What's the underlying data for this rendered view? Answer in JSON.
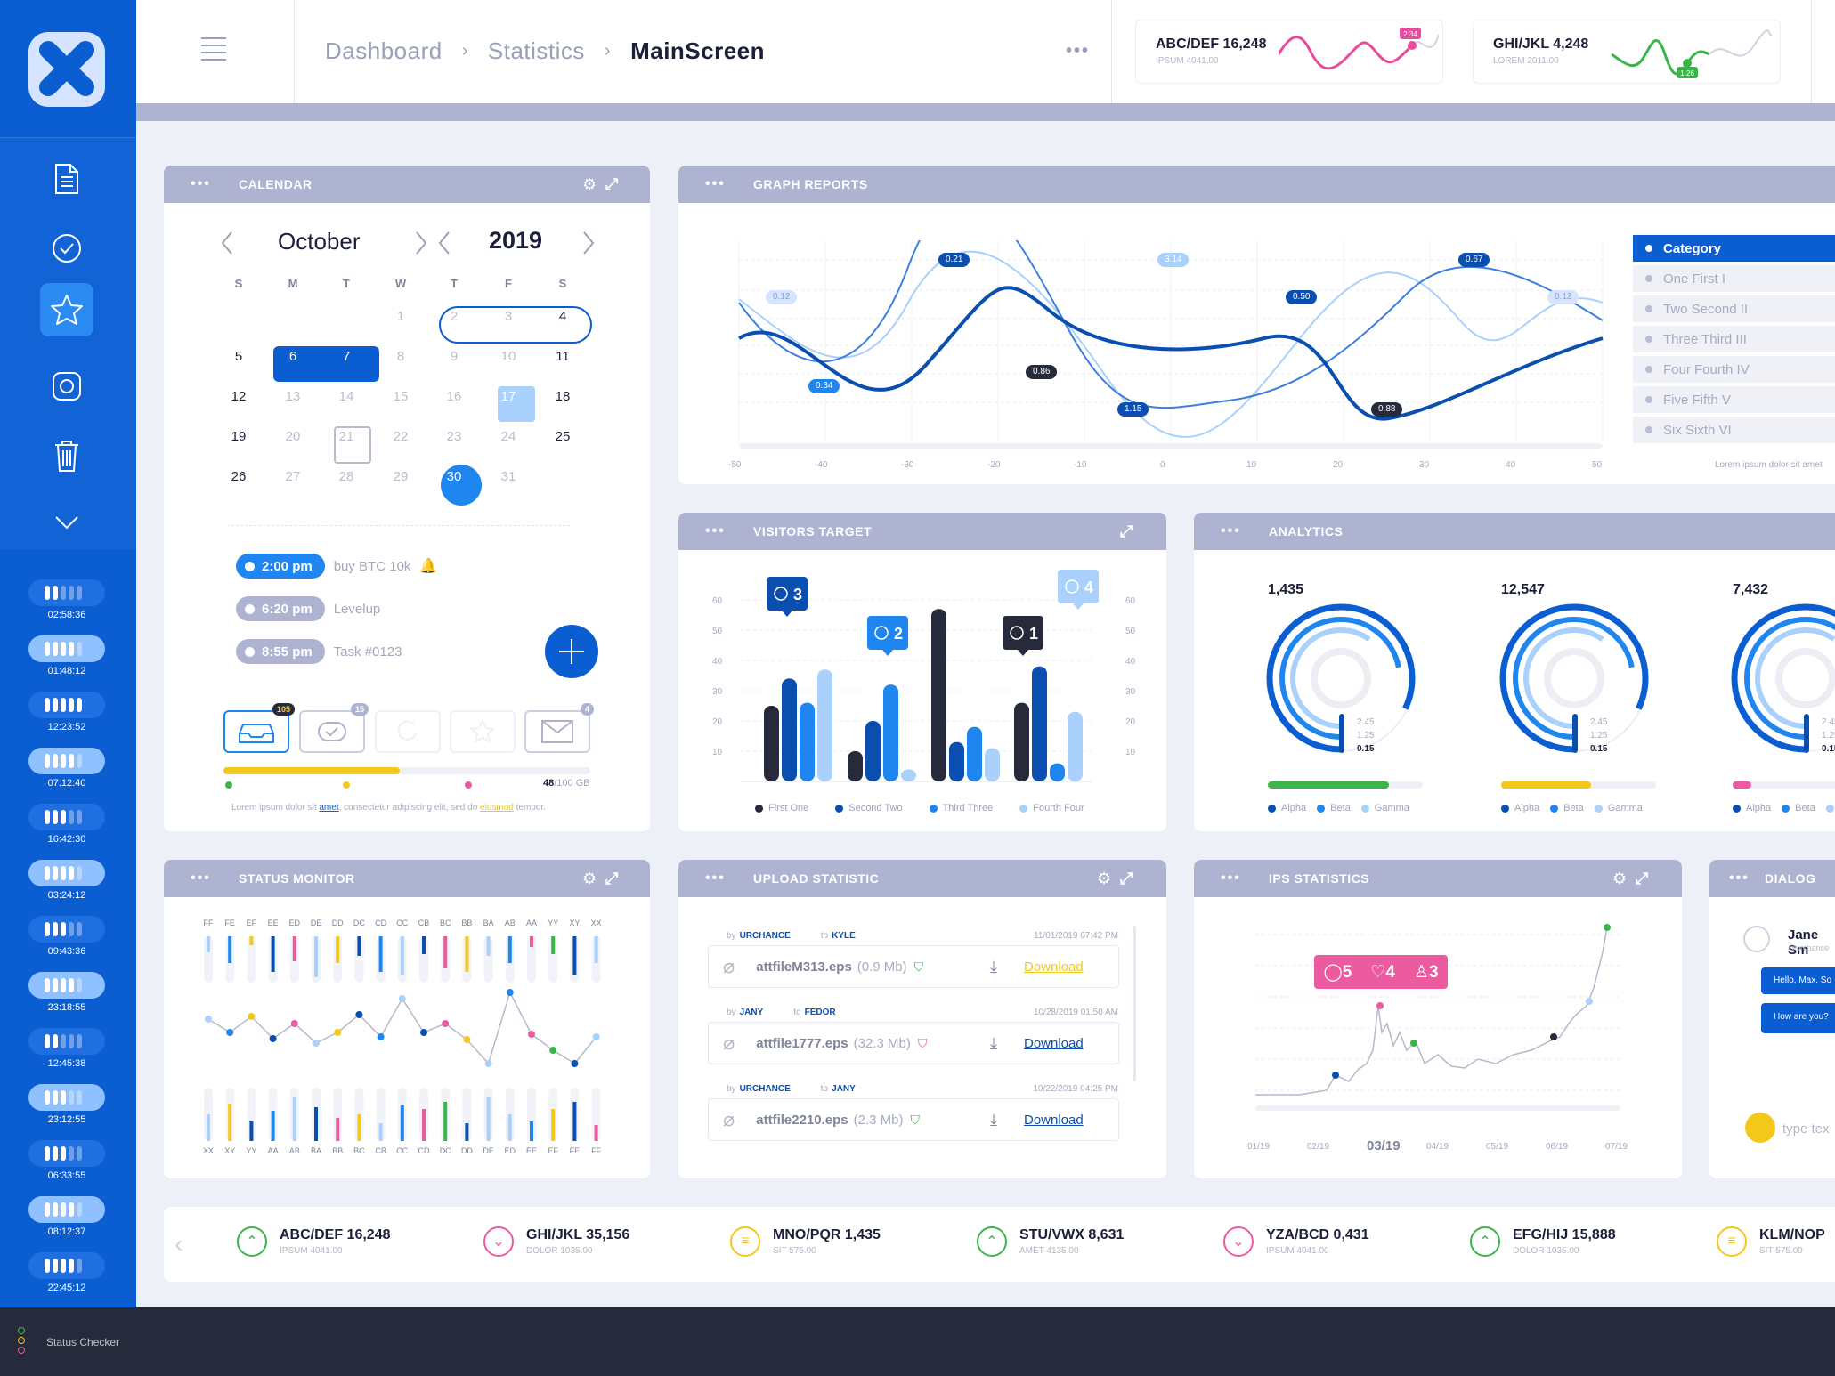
{
  "breadcrumb": [
    "Dashboard",
    "Statistics",
    "MainScreen"
  ],
  "tickers_top": [
    {
      "name": "ABC/DEF  16,248",
      "sub": "IPSUM  4041.00",
      "badge": "2.34",
      "color": "#e64c9b"
    },
    {
      "name": "GHI/JKL  4,248",
      "sub": "LOREM  2011.00",
      "badge": "1.26",
      "color": "#3bb54a"
    }
  ],
  "timers": [
    "02:58:36",
    "01:48:12",
    "12:23:52",
    "07:12:40",
    "16:42:30",
    "03:24:12",
    "09:43:36",
    "23:18:55",
    "12:45:38",
    "23:12:55",
    "06:33:55",
    "08:12:37",
    "22:45:12"
  ],
  "footer": {
    "label": "Status Checker"
  },
  "calendar": {
    "title": "CALENDAR",
    "month": "October",
    "year": "2019",
    "day_headers": [
      "S",
      "M",
      "T",
      "W",
      "T",
      "F",
      "S"
    ],
    "days": [
      "1",
      "2",
      "3",
      "4",
      "5",
      "6",
      "7",
      "8",
      "9",
      "10",
      "11",
      "12",
      "13",
      "14",
      "15",
      "16",
      "17",
      "18",
      "19",
      "20",
      "21",
      "22",
      "23",
      "24",
      "25",
      "26",
      "27",
      "28",
      "29",
      "30",
      "31"
    ],
    "events": [
      {
        "time": "2:00 pm",
        "text": "buy BTC 10k"
      },
      {
        "time": "6:20 pm",
        "text": "Levelup"
      },
      {
        "time": "8:55 pm",
        "text": "Task #0123"
      }
    ],
    "tray_badges": [
      "105",
      "15",
      "4"
    ],
    "storage": "48",
    "storage_total": "/100 GB",
    "storage_fraction": 0.48,
    "footnote_a": "Lorem ipsum dolor sit ",
    "footnote_link1": "amet",
    "footnote_b": ", consectetur adipiscing elit, sed do ",
    "footnote_link2": "eiusmod",
    "footnote_c": " tempor."
  },
  "graph_reports": {
    "title": "GRAPH REPORTS",
    "x_ticks": [
      "-50",
      "-40",
      "-30",
      "-20",
      "-10",
      "0",
      "10",
      "20",
      "30",
      "40",
      "50"
    ],
    "point_labels": [
      "0.12",
      "0.21",
      "3.14",
      "0.67",
      "0.50",
      "0.12",
      "0.34",
      "0.86",
      "1.15",
      "0.88"
    ],
    "categories": [
      "Category",
      "One First I",
      "Two Second II",
      "Three Third III",
      "Four Fourth IV",
      "Five Fifth V",
      "Six Sixth VI"
    ],
    "footnote": "Lorem ipsum dolor sit amet"
  },
  "visitors_target": {
    "title": "VISITORS TARGET",
    "y_ticks": [
      "60",
      "50",
      "40",
      "30",
      "20",
      "10"
    ],
    "badges": [
      "3",
      "2",
      "1",
      "4"
    ],
    "legend": [
      "First One",
      "Second Two",
      "Third Three",
      "Fourth Four"
    ],
    "colors": [
      "#262a3b",
      "#0a4fb0",
      "#1f86f0",
      "#a9d1fb"
    ]
  },
  "chart_data": {
    "type": "bar",
    "categories": [
      "1",
      "2",
      "3",
      "4"
    ],
    "series": [
      {
        "name": "First One",
        "values": [
          25,
          10,
          57,
          26
        ]
      },
      {
        "name": "Second Two",
        "values": [
          34,
          20,
          13,
          38
        ]
      },
      {
        "name": "Third Three",
        "values": [
          26,
          32,
          18,
          6
        ]
      },
      {
        "name": "Fourth Four",
        "values": [
          37,
          4,
          11,
          23
        ]
      }
    ],
    "ylim": [
      0,
      60
    ]
  },
  "analytics": {
    "title": "ANALYTICS",
    "items": [
      {
        "value": "1,435",
        "inner": [
          "2.45",
          "1.25",
          "0.15"
        ],
        "bar": "#3bb54a",
        "bar_fraction": 0.78
      },
      {
        "value": "12,547",
        "inner": [
          "2.45",
          "1.25",
          "0.15"
        ],
        "bar": "#f4c81a",
        "bar_fraction": 0.58
      },
      {
        "value": "7,432",
        "inner": [
          "2.45",
          "1.25",
          "0.15"
        ],
        "bar": "#ec5aa0",
        "bar_fraction": 0.12
      }
    ],
    "legend": [
      "Alpha",
      "Beta",
      "Gamma"
    ]
  },
  "status_monitor": {
    "title": "STATUS MONITOR",
    "top_labels": [
      "FF",
      "FE",
      "EF",
      "EE",
      "ED",
      "DE",
      "DD",
      "DC",
      "CD",
      "CC",
      "CB",
      "BC",
      "BB",
      "BA",
      "AB",
      "AA",
      "YY",
      "XY",
      "XX"
    ],
    "bottom_labels": [
      "XX",
      "XY",
      "YY",
      "AA",
      "AB",
      "BA",
      "BB",
      "BC",
      "CB",
      "CC",
      "CD",
      "DC",
      "DD",
      "DE",
      "ED",
      "EE",
      "EF",
      "FE",
      "FF"
    ]
  },
  "upload": {
    "title": "UPLOAD STATISTIC",
    "rows": [
      {
        "from": "URCHANCE",
        "to": "KYLE",
        "date": "11/01/2019 07:42 PM",
        "file": "attfileM313.eps",
        "size": "(0.9 Mb)",
        "link": "Download"
      },
      {
        "from": "JANY",
        "to": "FEDOR",
        "date": "10/28/2019 01:50 AM",
        "file": "attfile1777.eps",
        "size": "(32.3 Mb)",
        "link": "Download"
      },
      {
        "from": "URCHANCE",
        "to": "JANY",
        "date": "10/22/2019 04:25 PM",
        "file": "attfile2210.eps",
        "size": "(2.3 Mb)",
        "link": "Download"
      }
    ],
    "by": "by",
    "to": "to"
  },
  "ips": {
    "title": "IPS STATISTICS",
    "badge": [
      "5",
      "4",
      "3"
    ],
    "x_ticks": [
      "01/19",
      "02/19",
      "03/19",
      "04/19",
      "05/19",
      "06/19",
      "07/19"
    ]
  },
  "dialog": {
    "title": "DIALOG",
    "user": "Jane Sm",
    "handle": "@urchance",
    "msgs": [
      "Hello, Max. So",
      "How are you?"
    ],
    "placeholder": "type tex"
  },
  "tickers_bottom": [
    {
      "name": "ABC/DEF  16,248",
      "sub": "IPSUM  4041.00",
      "dir": "up"
    },
    {
      "name": "GHI/JKL  35,156",
      "sub": "DOLOR  1035.00",
      "dir": "down"
    },
    {
      "name": "MNO/PQR  1,435",
      "sub": "SIT  575.00",
      "dir": "flat"
    },
    {
      "name": "STU/VWX  8,631",
      "sub": "AMET  4135.00",
      "dir": "up"
    },
    {
      "name": "YZA/BCD  0,431",
      "sub": "IPSUM  4041.00",
      "dir": "down"
    },
    {
      "name": "EFG/HIJ  15,888",
      "sub": "DOLOR  1035.00",
      "dir": "up"
    },
    {
      "name": "KLM/NOP",
      "sub": "SIT  575.00",
      "dir": "flat"
    }
  ]
}
